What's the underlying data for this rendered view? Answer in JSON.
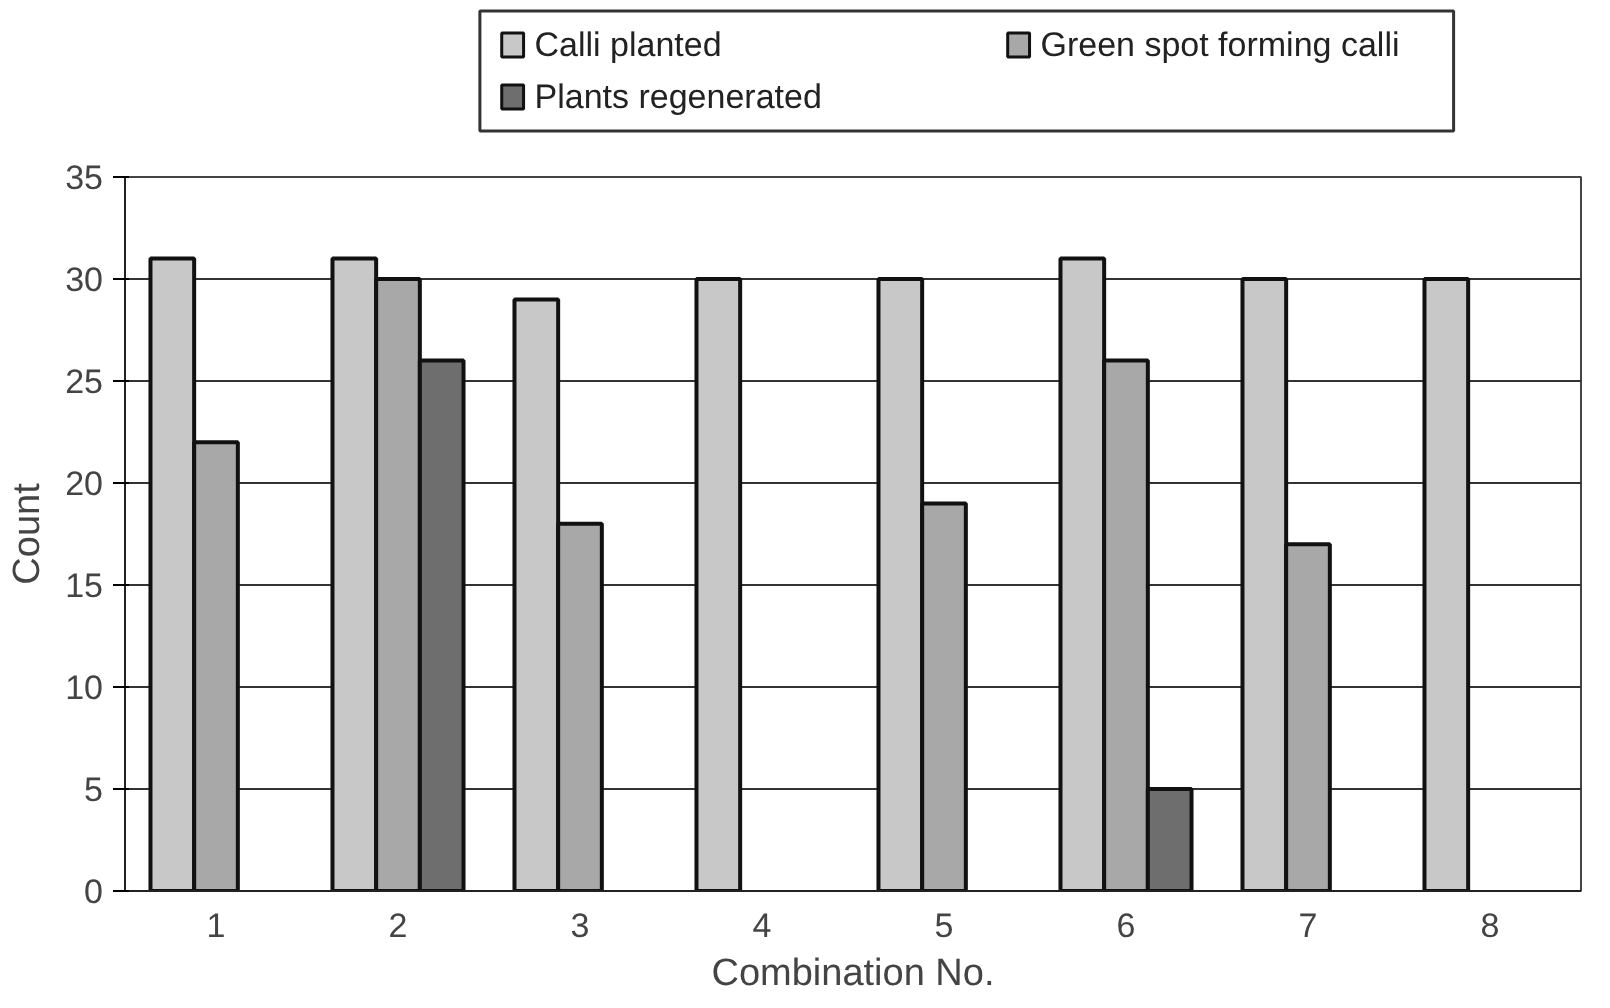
{
  "chart_data": {
    "type": "bar",
    "xlabel": "Combination No.",
    "ylabel": "Count",
    "categories": [
      "1",
      "2",
      "3",
      "4",
      "5",
      "6",
      "7",
      "8"
    ],
    "series": [
      {
        "name": "Calli planted",
        "color": "#c8c8c8",
        "values": [
          31,
          31,
          29,
          30,
          30,
          31,
          30,
          30
        ]
      },
      {
        "name": "Green spot forming calli",
        "color": "#a8a8a8",
        "values": [
          22,
          30,
          18,
          null,
          19,
          26,
          17,
          null
        ]
      },
      {
        "name": "Plants regenerated",
        "color": "#6e6e6e",
        "values": [
          null,
          26,
          null,
          null,
          null,
          5,
          null,
          null
        ]
      }
    ],
    "ylim": [
      0,
      35
    ],
    "yticks": [
      0,
      5,
      10,
      15,
      20,
      25,
      30,
      35
    ],
    "grid": "y",
    "legend": "top"
  }
}
